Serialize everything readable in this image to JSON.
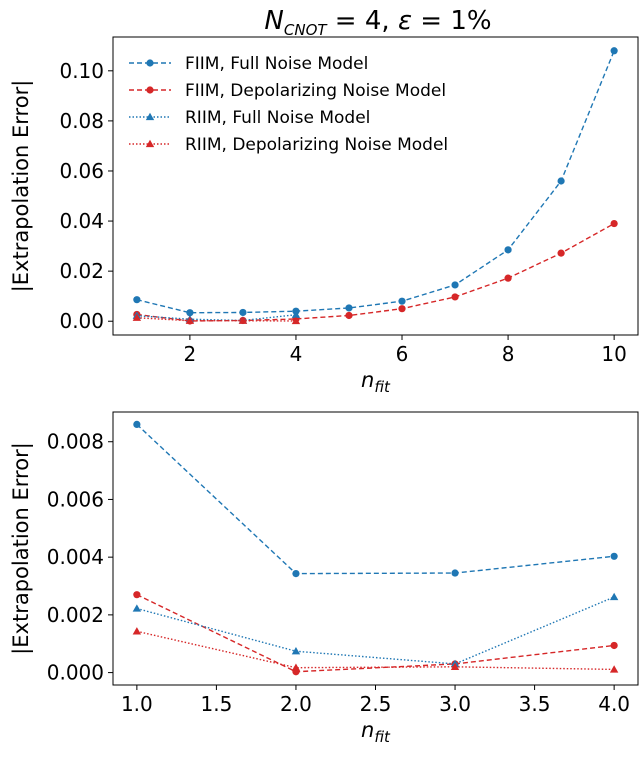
{
  "figure": {
    "title": {
      "prefix": "N",
      "subscript": "CNOT",
      "middle": " = 4, ",
      "epsilon": "ε",
      "suffix": " = 1%"
    }
  },
  "chart_data": [
    {
      "type": "line",
      "title": "N_CNOT = 4, ε = 1%",
      "xlabel": {
        "base": "n",
        "sub": "fit"
      },
      "ylabel": "|Extrapolation Error|",
      "xlim": [
        0.55,
        10.45
      ],
      "ylim": [
        -0.0055,
        0.1135
      ],
      "xticks": [
        2,
        4,
        6,
        8,
        10
      ],
      "xtick_labels": [
        "2",
        "4",
        "6",
        "8",
        "10"
      ],
      "yticks": [
        0,
        0.02,
        0.04,
        0.06,
        0.08,
        0.1
      ],
      "ytick_labels": [
        "0.00",
        "0.02",
        "0.04",
        "0.06",
        "0.08",
        "0.10"
      ],
      "grid": false,
      "legend_position": "top-left",
      "series": [
        {
          "name": "FIIM, Full Noise Model",
          "color": "#1f77b4",
          "dash": "dashed",
          "marker": "circle",
          "x": [
            1,
            2,
            3,
            4,
            5,
            6,
            7,
            8,
            9,
            10
          ],
          "y": [
            0.0086,
            0.0034,
            0.0035,
            0.004,
            0.0053,
            0.008,
            0.0145,
            0.0285,
            0.056,
            0.108
          ]
        },
        {
          "name": "FIIM, Depolarizing Noise Model",
          "color": "#d62728",
          "dash": "dashed",
          "marker": "circle",
          "x": [
            1,
            2,
            3,
            4,
            5,
            6,
            7,
            8,
            9,
            10
          ],
          "y": [
            0.0027,
            0.0001,
            0.0003,
            0.0009,
            0.0023,
            0.005,
            0.0097,
            0.0172,
            0.0272,
            0.039
          ]
        },
        {
          "name": "RIIM, Full Noise Model",
          "color": "#1f77b4",
          "dash": "dotted",
          "marker": "triangle",
          "x": [
            1,
            2,
            3,
            4
          ],
          "y": [
            0.0022,
            0.0008,
            0.0003,
            0.0026
          ]
        },
        {
          "name": "RIIM, Depolarizing Noise Model",
          "color": "#d62728",
          "dash": "dotted",
          "marker": "triangle",
          "x": [
            1,
            2,
            3,
            4
          ],
          "y": [
            0.0014,
            0.0002,
            0.0002,
            0.0001
          ]
        }
      ]
    },
    {
      "type": "line",
      "title": "",
      "xlabel": {
        "base": "n",
        "sub": "fit"
      },
      "ylabel": "|Extrapolation Error|",
      "xlim": [
        0.85,
        4.15
      ],
      "ylim": [
        -0.00043,
        0.00903
      ],
      "xticks": [
        1.0,
        1.5,
        2.0,
        2.5,
        3.0,
        3.5,
        4.0
      ],
      "xtick_labels": [
        "1.0",
        "1.5",
        "2.0",
        "2.5",
        "3.0",
        "3.5",
        "4.0"
      ],
      "yticks": [
        0,
        0.002,
        0.004,
        0.006,
        0.008
      ],
      "ytick_labels": [
        "0.000",
        "0.002",
        "0.004",
        "0.006",
        "0.008"
      ],
      "grid": false,
      "legend_position": "none",
      "series": [
        {
          "name": "FIIM, Full Noise Model",
          "color": "#1f77b4",
          "dash": "dashed",
          "marker": "circle",
          "x": [
            1,
            2,
            3,
            4
          ],
          "y": [
            0.0086,
            0.00343,
            0.00345,
            0.00403
          ]
        },
        {
          "name": "FIIM, Depolarizing Noise Model",
          "color": "#d62728",
          "dash": "dashed",
          "marker": "circle",
          "x": [
            1,
            2,
            3,
            4
          ],
          "y": [
            0.0027,
            3e-05,
            0.0003,
            0.00094
          ]
        },
        {
          "name": "RIIM, Full Noise Model",
          "color": "#1f77b4",
          "dash": "dotted",
          "marker": "triangle",
          "x": [
            1,
            2,
            3,
            4
          ],
          "y": [
            0.00222,
            0.00074,
            0.0003,
            0.00262
          ]
        },
        {
          "name": "RIIM, Depolarizing Noise Model",
          "color": "#d62728",
          "dash": "dotted",
          "marker": "triangle",
          "x": [
            1,
            2,
            3,
            4
          ],
          "y": [
            0.00143,
            0.00017,
            0.0002,
            0.00011
          ]
        }
      ]
    }
  ]
}
